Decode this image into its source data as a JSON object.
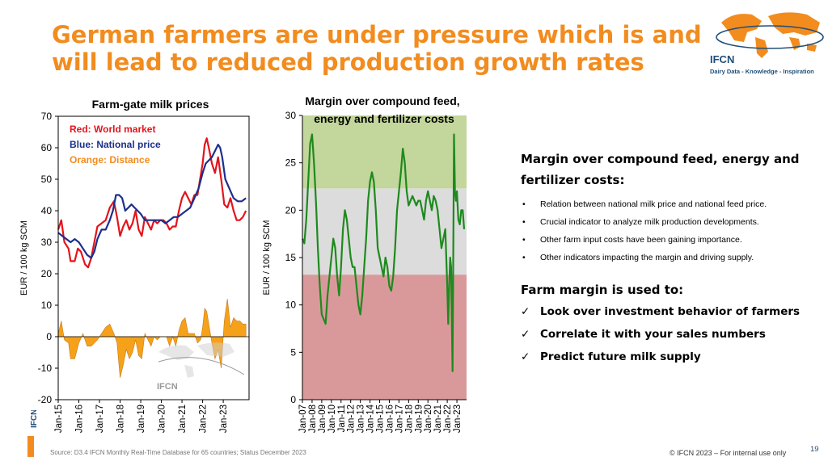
{
  "slide": {
    "title": "German farmers are under pressure which is and will lead to reduced production growth rates",
    "logo": {
      "name": "IFCN",
      "tagline": "Dairy Data - Knowledge - Inspiration",
      "icon": "world-map-icon"
    },
    "watermark": "IFCN",
    "side_brand": "IFCN",
    "source": "Source: D3.4 IFCN Monthly Real-Time Database for 65 countries; Status December 2023",
    "copyright": "© IFCN 2023 – For internal use only",
    "page_number": "19",
    "colors": {
      "accent": "#f28c1f",
      "brand_blue": "#1f4e79",
      "world": "#e3141b",
      "national": "#1c2f8c",
      "distance": "#f5a21a",
      "margin_line": "#1e8a1e"
    }
  },
  "right_panel": {
    "title": "Margin over compound feed, energy and fertilizer costs:",
    "bullets": [
      "Relation between national milk price and national feed price.",
      "Crucial indicator to analyze milk production developments.",
      "Other farm input costs have been gaining importance.",
      "Other indicators impacting the margin and driving supply."
    ],
    "subtitle": "Farm margin is used to:",
    "checks": [
      "Look over investment behavior of farmers",
      "Correlate it with your sales numbers",
      "Predict future milk supply"
    ]
  },
  "chart_data": [
    {
      "type": "line",
      "title": "Farm-gate milk prices",
      "ylabel": "EUR / 100 kg SCM",
      "xlabel": "",
      "ylim": [
        -20,
        70
      ],
      "yticks": [
        -20,
        -10,
        0,
        10,
        20,
        30,
        40,
        50,
        60,
        70
      ],
      "xlim": [
        2015,
        2024.25
      ],
      "x_tick_labels": [
        "Jan-15",
        "Jan-16",
        "Jan-17",
        "Jan-18",
        "Jan-19",
        "Jan-20",
        "Jan-21",
        "Jan-22",
        "Jan-23"
      ],
      "grid": false,
      "legend_position": "top-left",
      "legend": [
        "Red: World market",
        "Blue: National price",
        "Orange: Distance"
      ],
      "series": [
        {
          "name": "Red: World market",
          "color": "#e3141b",
          "x": [
            2015.0,
            2015.15,
            2015.3,
            2015.5,
            2015.6,
            2015.8,
            2015.95,
            2016.1,
            2016.3,
            2016.45,
            2016.6,
            2016.75,
            2016.9,
            2017.1,
            2017.3,
            2017.5,
            2017.7,
            2017.85,
            2018.0,
            2018.15,
            2018.3,
            2018.45,
            2018.6,
            2018.75,
            2018.9,
            2019.05,
            2019.2,
            2019.35,
            2019.5,
            2019.65,
            2019.8,
            2019.95,
            2020.1,
            2020.25,
            2020.4,
            2020.55,
            2020.7,
            2020.85,
            2021.0,
            2021.15,
            2021.3,
            2021.45,
            2021.6,
            2021.75,
            2021.9,
            2022.0,
            2022.1,
            2022.2,
            2022.3,
            2022.45,
            2022.6,
            2022.75,
            2022.9,
            2023.05,
            2023.2,
            2023.35,
            2023.5,
            2023.65,
            2023.8,
            2023.95,
            2024.1
          ],
          "values": [
            34,
            37,
            30,
            28,
            24,
            24,
            28,
            27,
            23,
            22,
            25,
            30,
            35,
            36,
            37,
            41,
            43,
            38,
            32,
            35,
            37,
            34,
            36,
            40,
            34,
            32,
            38,
            36,
            34,
            37,
            36,
            37,
            37,
            36,
            34,
            35,
            35,
            40,
            44,
            46,
            44,
            42,
            45,
            45,
            51,
            55,
            61,
            63,
            60,
            55,
            52,
            57,
            50,
            42,
            41,
            44,
            40,
            37,
            37,
            38,
            40
          ]
        },
        {
          "name": "Blue: National price",
          "color": "#1c2f8c",
          "x": [
            2015.0,
            2015.2,
            2015.4,
            2015.6,
            2015.8,
            2016.0,
            2016.2,
            2016.4,
            2016.6,
            2016.75,
            2016.9,
            2017.1,
            2017.3,
            2017.5,
            2017.65,
            2017.8,
            2017.95,
            2018.1,
            2018.25,
            2018.4,
            2018.55,
            2018.7,
            2018.85,
            2019.0,
            2019.2,
            2019.4,
            2019.6,
            2019.8,
            2020.0,
            2020.2,
            2020.4,
            2020.6,
            2020.8,
            2021.0,
            2021.2,
            2021.4,
            2021.6,
            2021.8,
            2022.0,
            2022.15,
            2022.3,
            2022.45,
            2022.6,
            2022.75,
            2022.85,
            2022.95,
            2023.1,
            2023.3,
            2023.5,
            2023.7,
            2023.9,
            2024.1
          ],
          "values": [
            33,
            32,
            31,
            30,
            31,
            30,
            28,
            26,
            25,
            27,
            31,
            34,
            34,
            37,
            40,
            45,
            45,
            44,
            40,
            41,
            42,
            41,
            40,
            39,
            37,
            37,
            37,
            37,
            37,
            36,
            37,
            38,
            38,
            39,
            40,
            41,
            44,
            47,
            52,
            55,
            56,
            57,
            59,
            61,
            60,
            57,
            50,
            47,
            44,
            43,
            43,
            44
          ]
        },
        {
          "name": "Orange: Distance",
          "color": "#f5a21a",
          "type": "area",
          "x": [
            2015.0,
            2015.15,
            2015.3,
            2015.5,
            2015.6,
            2015.8,
            2016.0,
            2016.2,
            2016.4,
            2016.6,
            2016.75,
            2016.9,
            2017.1,
            2017.3,
            2017.5,
            2017.7,
            2017.85,
            2018.0,
            2018.15,
            2018.3,
            2018.45,
            2018.6,
            2018.75,
            2018.9,
            2019.05,
            2019.2,
            2019.35,
            2019.5,
            2019.65,
            2019.8,
            2019.95,
            2020.1,
            2020.25,
            2020.4,
            2020.55,
            2020.7,
            2020.85,
            2021.0,
            2021.15,
            2021.3,
            2021.45,
            2021.6,
            2021.75,
            2021.9,
            2022.0,
            2022.1,
            2022.2,
            2022.3,
            2022.45,
            2022.6,
            2022.75,
            2022.9,
            2023.05,
            2023.2,
            2023.35,
            2023.5,
            2023.65,
            2023.8,
            2023.95,
            2024.1
          ],
          "values": [
            1,
            5,
            -1,
            -2,
            -7,
            -7,
            -2,
            1,
            -3,
            -3,
            -2,
            -1,
            1,
            3,
            4,
            1,
            -2,
            -13,
            -9,
            -4,
            -7,
            -5,
            -1,
            -6,
            -7,
            1,
            -1,
            -3,
            0,
            -1,
            0,
            0,
            0,
            -3,
            0,
            -3,
            2,
            5,
            6,
            1,
            1,
            1,
            -2,
            -1,
            3,
            9,
            8,
            4,
            -2,
            -7,
            -4,
            -10,
            5,
            12,
            3,
            6,
            5,
            5,
            4,
            4
          ]
        }
      ]
    },
    {
      "type": "line",
      "title": "Margin over compound feed, energy and fertilizer costs",
      "ylabel": "EUR / 100 kg SCM",
      "xlabel": "",
      "ylim": [
        0,
        30
      ],
      "yticks": [
        0,
        5,
        10,
        15,
        20,
        25,
        30
      ],
      "xlim": [
        2007,
        2024
      ],
      "x_tick_labels": [
        "Jan-07",
        "Jan-08",
        "Jan-09",
        "Jan-10",
        "Jan-11",
        "Jan-12",
        "Jan-13",
        "Jan-14",
        "Jan-15",
        "Jan-16",
        "Jan-17",
        "Jan-18",
        "Jan-19",
        "Jan-20",
        "Jan-21",
        "Jan-22",
        "Jan-23"
      ],
      "grid": false,
      "bands": [
        {
          "from": 0,
          "to": 13.2,
          "color": "#d9999b"
        },
        {
          "from": 13.2,
          "to": 22.3,
          "color": "#dcdcdc"
        },
        {
          "from": 22.3,
          "to": 30,
          "color": "#c3d69b"
        }
      ],
      "series": [
        {
          "name": "",
          "color": "#1e8a1e",
          "x": [
            2007.0,
            2007.2,
            2007.4,
            2007.6,
            2007.8,
            2008.0,
            2008.2,
            2008.4,
            2008.6,
            2008.8,
            2009.0,
            2009.2,
            2009.4,
            2009.6,
            2009.8,
            2010.0,
            2010.2,
            2010.4,
            2010.6,
            2010.8,
            2011.0,
            2011.2,
            2011.4,
            2011.6,
            2011.8,
            2012.0,
            2012.2,
            2012.4,
            2012.6,
            2012.8,
            2013.0,
            2013.2,
            2013.4,
            2013.6,
            2013.8,
            2014.0,
            2014.2,
            2014.4,
            2014.6,
            2014.8,
            2015.0,
            2015.2,
            2015.4,
            2015.6,
            2015.8,
            2016.0,
            2016.2,
            2016.4,
            2016.6,
            2016.8,
            2017.0,
            2017.2,
            2017.4,
            2017.6,
            2017.8,
            2018.0,
            2018.2,
            2018.4,
            2018.6,
            2018.8,
            2019.0,
            2019.2,
            2019.4,
            2019.6,
            2019.8,
            2020.0,
            2020.2,
            2020.4,
            2020.6,
            2020.8,
            2021.0,
            2021.2,
            2021.4,
            2021.6,
            2021.8,
            2022.0,
            2022.1,
            2022.2,
            2022.3,
            2022.4,
            2022.55,
            2022.7,
            2022.8,
            2022.9,
            2023.0,
            2023.15,
            2023.3,
            2023.45,
            2023.6,
            2023.75
          ],
          "values": [
            17,
            16.5,
            19,
            23,
            27,
            28,
            25,
            21,
            16,
            12,
            9,
            8.5,
            8,
            11,
            13,
            15,
            17,
            16,
            13,
            11,
            14,
            18,
            20,
            19,
            17,
            15,
            14,
            14,
            12,
            10,
            9,
            11,
            14,
            17,
            21,
            23,
            24,
            23,
            20,
            16,
            15,
            14,
            13,
            15,
            14,
            12,
            11.5,
            13,
            16,
            20,
            22,
            24,
            26.5,
            25,
            22,
            20.5,
            21,
            21.5,
            21,
            20.5,
            21,
            21,
            20,
            19,
            21,
            22,
            21,
            20,
            21.5,
            21,
            20,
            18,
            16,
            17,
            18,
            12,
            8,
            12,
            15,
            14,
            3,
            28,
            22,
            21,
            22,
            19,
            18.5,
            20,
            20,
            18
          ]
        }
      ]
    }
  ]
}
